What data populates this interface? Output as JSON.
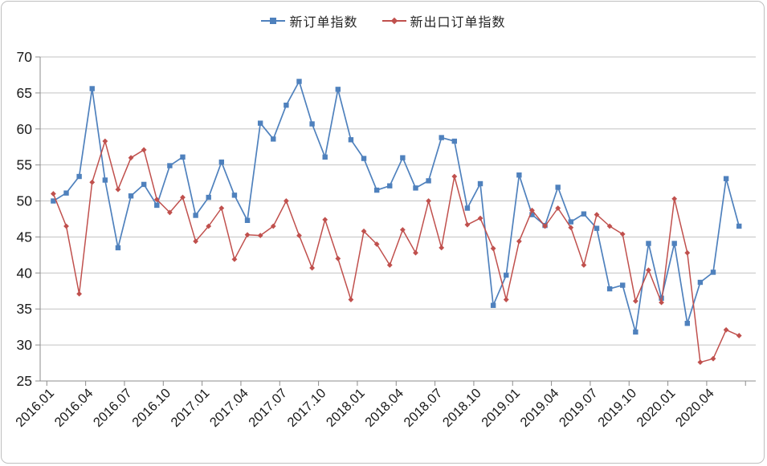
{
  "chart": {
    "legend": [
      {
        "label": "新订单指数",
        "color": "#4F81BD",
        "marker": "square"
      },
      {
        "label": "新出口订单指数",
        "color": "#C0504D",
        "marker": "diamond"
      }
    ],
    "y_axis": {
      "ticks": [
        70,
        65,
        60,
        55,
        50,
        45,
        40,
        35,
        30,
        25
      ],
      "min": 25,
      "max": 70,
      "step": 5
    },
    "x_axis": {
      "tick_labels": [
        "2016.01",
        "2016.04",
        "2016.07",
        "2016.10",
        "2017.01",
        "2017.04",
        "2017.07",
        "2017.10",
        "2018.01",
        "2018.04",
        "2018.07",
        "2018.10",
        "2019.01",
        "2019.04",
        "2019.07",
        "2019.10",
        "2020.01",
        "2020.04"
      ]
    },
    "colors": {
      "gridline": "#c3c3c3",
      "axis": "#8c8c8c",
      "text": "#1a1a1a"
    },
    "chart_data": {
      "type": "line",
      "x": [
        "2016.01",
        "2016.02",
        "2016.03",
        "2016.04",
        "2016.05",
        "2016.06",
        "2016.07",
        "2016.08",
        "2016.09",
        "2016.10",
        "2016.11",
        "2016.12",
        "2017.01",
        "2017.02",
        "2017.03",
        "2017.04",
        "2017.05",
        "2017.06",
        "2017.07",
        "2017.08",
        "2017.09",
        "2017.10",
        "2017.11",
        "2017.12",
        "2018.01",
        "2018.02",
        "2018.03",
        "2018.04",
        "2018.05",
        "2018.06",
        "2018.07",
        "2018.08",
        "2018.09",
        "2018.10",
        "2018.11",
        "2018.12",
        "2019.01",
        "2019.02",
        "2019.03",
        "2019.04",
        "2019.05",
        "2019.06",
        "2019.07",
        "2019.08",
        "2019.09",
        "2019.10",
        "2019.11",
        "2019.12",
        "2020.01",
        "2020.02",
        "2020.03",
        "2020.04",
        "2020.05",
        "2020.06"
      ],
      "series": [
        {
          "name": "新订单指数",
          "color": "#4F81BD",
          "marker": "square",
          "values": [
            50.0,
            51.1,
            53.4,
            65.6,
            52.9,
            43.5,
            50.7,
            52.3,
            49.4,
            54.9,
            56.1,
            48.0,
            50.5,
            55.4,
            50.8,
            47.3,
            60.8,
            58.6,
            63.3,
            66.6,
            60.7,
            56.1,
            65.5,
            58.5,
            55.9,
            51.5,
            52.1,
            56.0,
            51.8,
            52.8,
            58.8,
            58.3,
            49.0,
            52.4,
            35.5,
            39.7,
            53.6,
            48.1,
            46.6,
            51.9,
            47.1,
            48.2,
            46.2,
            37.8,
            38.3,
            31.8,
            44.1,
            36.5,
            44.1,
            33.0,
            38.7,
            40.1,
            53.1,
            46.5
          ]
        },
        {
          "name": "新出口订单指数",
          "color": "#C0504D",
          "marker": "diamond",
          "values": [
            51.0,
            46.5,
            37.1,
            52.6,
            58.3,
            51.6,
            56.0,
            57.1,
            50.2,
            48.4,
            50.5,
            44.4,
            46.5,
            49.0,
            41.9,
            45.3,
            45.2,
            46.5,
            50.0,
            45.2,
            40.7,
            47.4,
            42.0,
            36.3,
            45.8,
            44.0,
            41.1,
            46.0,
            42.8,
            50.0,
            43.5,
            53.4,
            46.7,
            47.6,
            43.4,
            36.3,
            44.4,
            48.7,
            46.5,
            49.0,
            46.3,
            41.1,
            48.1,
            46.5,
            45.4,
            36.1,
            40.4,
            35.9,
            50.3,
            42.8,
            27.6,
            28.1,
            32.1,
            31.3
          ]
        }
      ],
      "title": "",
      "xlabel": "",
      "ylabel": "",
      "ylim": [
        25,
        70
      ],
      "grid": true,
      "legend_position": "top"
    }
  }
}
